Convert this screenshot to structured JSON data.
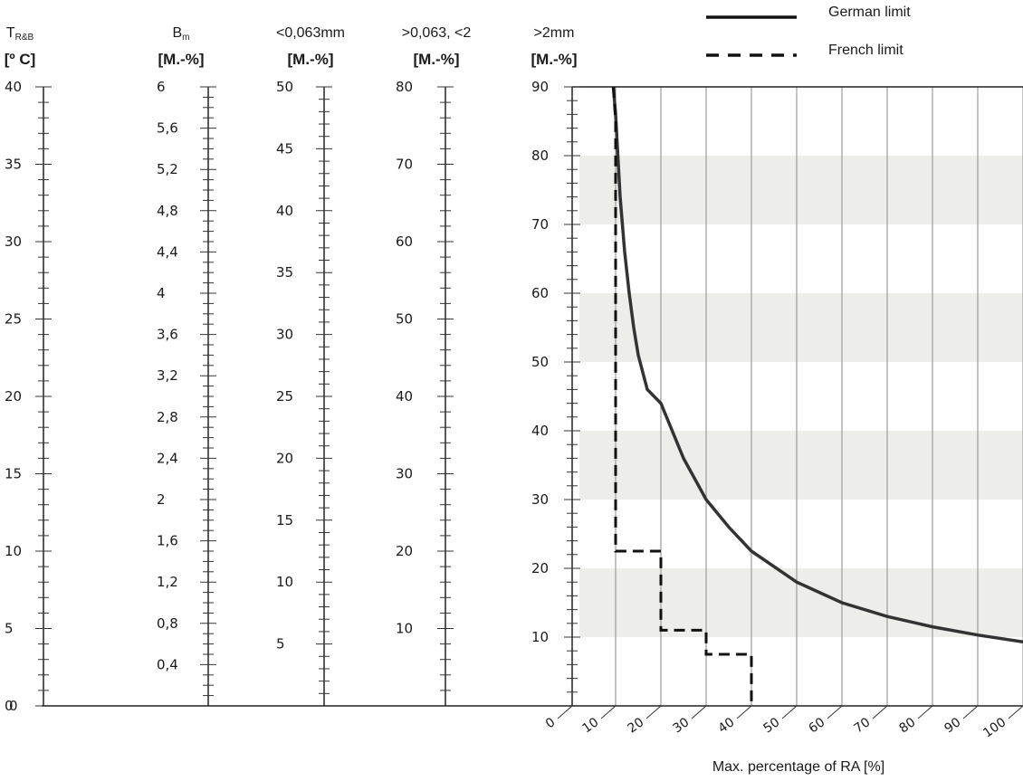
{
  "chart_data": {
    "type": "line",
    "legend_position": "top-right",
    "legend": [
      {
        "label": "German limit",
        "style": "solid"
      },
      {
        "label": "French limit",
        "style": "dashed"
      }
    ],
    "axes": [
      {
        "id": "t",
        "title_main": "T",
        "title_sub": "R&B",
        "unit": "[º C]",
        "min": 0,
        "max": 40,
        "labels": [
          "0",
          "5",
          "10",
          "15",
          "20",
          "25",
          "30",
          "35",
          "40"
        ],
        "minor_step": 1
      },
      {
        "id": "b",
        "title_main": "B",
        "title_sub": "m",
        "unit": "[M.-%]",
        "min": 0,
        "max": 6,
        "labels": [
          "0,4",
          "0,8",
          "1,2",
          "1,6",
          "2",
          "2,4",
          "2,8",
          "3,2",
          "3,6",
          "4",
          "4,4",
          "4,8",
          "5,2",
          "5,6",
          "6"
        ],
        "minor_step": 0.1
      },
      {
        "id": "f",
        "title_main": "<0,063mm",
        "title_sub": "",
        "unit": "[M.-%]",
        "min": 0,
        "max": 50,
        "labels": [
          "5",
          "10",
          "15",
          "20",
          "25",
          "30",
          "35",
          "40",
          "45",
          "50"
        ],
        "minor_step": 1
      },
      {
        "id": "s",
        "title_main": ">0,063, <2",
        "title_sub": "",
        "unit": "[M.-%]",
        "min": 0,
        "max": 80,
        "labels": [
          "10",
          "20",
          "30",
          "40",
          "50",
          "60",
          "70",
          "80"
        ],
        "minor_step": 2
      },
      {
        "id": "g",
        "title_main": ">2mm",
        "title_sub": "",
        "unit": "[M.-%]",
        "min": 0,
        "max": 90,
        "labels": [
          "10",
          "20",
          "30",
          "40",
          "50",
          "60",
          "70",
          "80",
          "90"
        ],
        "minor_step": 2
      }
    ],
    "x_axis": {
      "label": "Max. percentage of RA [%]",
      "ticks": [
        "0",
        "10",
        "20",
        "30",
        "40",
        "50",
        "60",
        "70",
        "80",
        "90",
        "100"
      ],
      "range": [
        0,
        100
      ]
    },
    "y_range": [
      0,
      90
    ],
    "shaded_bands": [
      [
        10,
        20
      ],
      [
        30,
        40
      ],
      [
        50,
        60
      ],
      [
        70,
        80
      ]
    ],
    "series": [
      {
        "name": "German limit",
        "style": "solid",
        "x": [
          9.5,
          10,
          11,
          12,
          13,
          14,
          15,
          17,
          20,
          25,
          30,
          35,
          40,
          50,
          60,
          70,
          80,
          90,
          100
        ],
        "y": [
          90,
          86,
          74,
          66,
          60,
          55,
          51,
          46,
          44,
          36,
          30,
          26,
          22.5,
          18,
          15,
          13,
          11.5,
          10.3,
          9.3
        ]
      },
      {
        "name": "French limit",
        "style": "dashed",
        "x": [
          9.5,
          10,
          10,
          20,
          20,
          30,
          30,
          40,
          40
        ],
        "y": [
          90,
          85,
          22.5,
          22.5,
          11,
          11,
          7.5,
          7.5,
          0
        ]
      }
    ]
  }
}
